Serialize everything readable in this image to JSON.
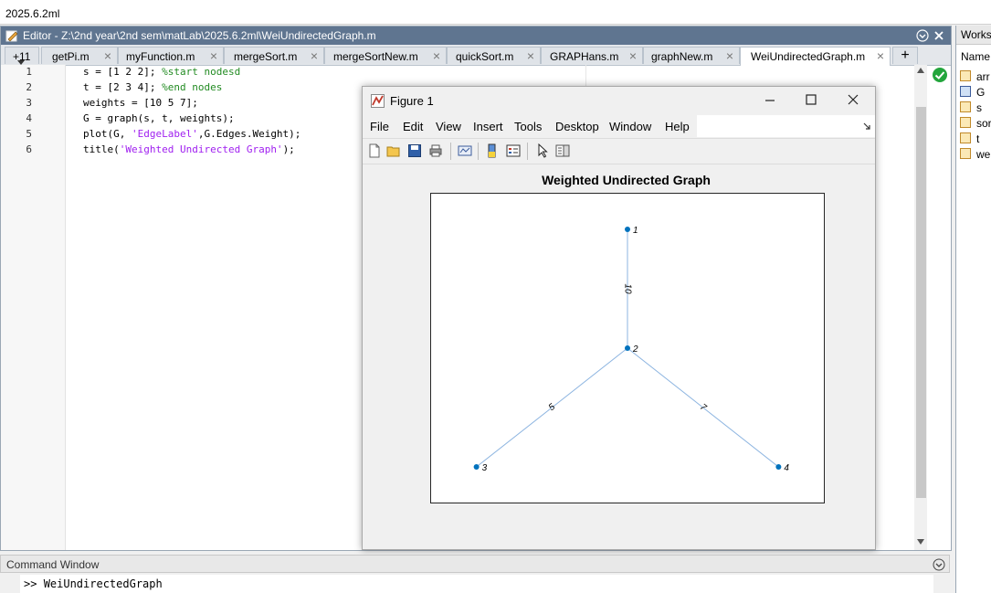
{
  "path_bar": {
    "text": "2025.6.2ml"
  },
  "editor": {
    "title": "Editor - Z:\\2nd year\\2nd sem\\matLab\\2025.6.2ml\\WeiUndirectedGraph.m",
    "overflow_tab": "+11",
    "tabs": [
      {
        "label": "getPi.m"
      },
      {
        "label": "myFunction.m"
      },
      {
        "label": "mergeSort.m"
      },
      {
        "label": "mergeSortNew.m"
      },
      {
        "label": "quickSort.m"
      },
      {
        "label": "GRAPHans.m"
      },
      {
        "label": "graphNew.m"
      },
      {
        "label": "WeiUndirectedGraph.m",
        "active": true
      }
    ],
    "line_numbers": [
      "1",
      "2",
      "3",
      "4",
      "5",
      "6"
    ],
    "code": {
      "l1_code": "s = [1 2 2]; ",
      "l1_comment": "%start nodesd",
      "l2_code": "t = [2 3 4]; ",
      "l2_comment": "%end nodes",
      "l3_code": "weights = [10 5 7];",
      "l4_code": "G = graph(s, t, weights);",
      "l5_pre": "plot(G, ",
      "l5_str": "'EdgeLabel'",
      "l5_post": ",G.Edges.Weight);",
      "l6_pre": "title(",
      "l6_str": "'Weighted Undirected Graph'",
      "l6_post": ");"
    }
  },
  "figure": {
    "window_title": "Figure 1",
    "menu": [
      "File",
      "Edit",
      "View",
      "Insert",
      "Tools",
      "Desktop",
      "Window",
      "Help"
    ],
    "plot_title": "Weighted Undirected Graph"
  },
  "chart_data": {
    "type": "graph",
    "title": "Weighted Undirected Graph",
    "nodes": [
      {
        "label": "1",
        "x": 2,
        "y": 3
      },
      {
        "label": "2",
        "x": 2,
        "y": 2
      },
      {
        "label": "3",
        "x": 1,
        "y": 1
      },
      {
        "label": "4",
        "x": 3,
        "y": 1
      }
    ],
    "edges": [
      {
        "source": "1",
        "target": "2",
        "weight": "10"
      },
      {
        "source": "2",
        "target": "3",
        "weight": "5"
      },
      {
        "source": "2",
        "target": "4",
        "weight": "7"
      }
    ],
    "xlim": [
      0.7,
      3.3
    ],
    "ylim": [
      0.7,
      3.3
    ],
    "node_color": "#0072bd",
    "edge_color": "#8cb4e0"
  },
  "command_window": {
    "title": "Command Window",
    "prompt": ">> ",
    "command": "WeiUndirectedGraph"
  },
  "workspace": {
    "title": "Works",
    "header": "Name",
    "items": [
      {
        "label": "arr",
        "icon": "matrix-icon"
      },
      {
        "label": "G",
        "icon": "graph-object-icon"
      },
      {
        "label": "s",
        "icon": "matrix-icon"
      },
      {
        "label": "sor",
        "icon": "matrix-icon"
      },
      {
        "label": "t",
        "icon": "matrix-icon"
      },
      {
        "label": "wei",
        "icon": "matrix-icon"
      }
    ]
  }
}
